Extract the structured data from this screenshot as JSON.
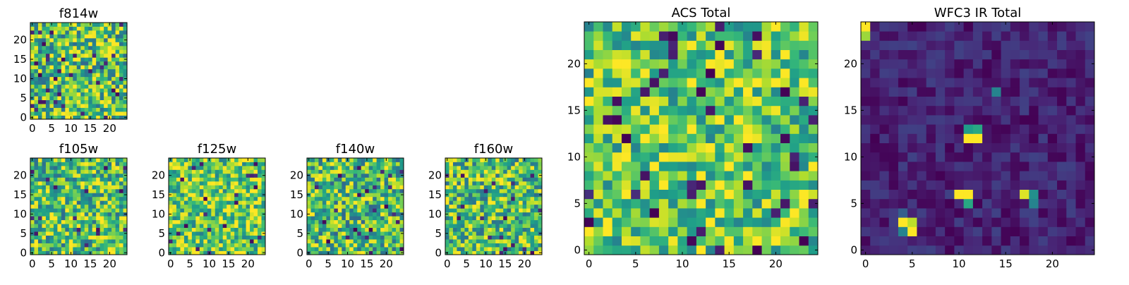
{
  "chart_data": [
    {
      "type": "heatmap",
      "title": "f814w",
      "grid_size": 25,
      "xlim": [
        -0.5,
        24.5
      ],
      "ylim": [
        -0.5,
        24.5
      ],
      "xticks": [
        0,
        5,
        10,
        15,
        20
      ],
      "yticks": [
        0,
        5,
        10,
        15,
        20
      ],
      "colormap": "viridis",
      "background_level": 0.72,
      "variation": 0.38,
      "sources": []
    },
    {
      "type": "heatmap",
      "title": "f105w",
      "grid_size": 25,
      "xlim": [
        -0.5,
        24.5
      ],
      "ylim": [
        -0.5,
        24.5
      ],
      "xticks": [
        0,
        5,
        10,
        15,
        20
      ],
      "yticks": [
        0,
        5,
        10,
        15,
        20
      ],
      "colormap": "viridis",
      "background_level": 0.7,
      "variation": 0.35,
      "sources": []
    },
    {
      "type": "heatmap",
      "title": "f125w",
      "grid_size": 25,
      "xlim": [
        -0.5,
        24.5
      ],
      "ylim": [
        -0.5,
        24.5
      ],
      "xticks": [
        0,
        5,
        10,
        15,
        20
      ],
      "yticks": [
        0,
        5,
        10,
        15,
        20
      ],
      "colormap": "viridis",
      "background_level": 0.76,
      "variation": 0.33,
      "sources": []
    },
    {
      "type": "heatmap",
      "title": "f140w",
      "grid_size": 25,
      "xlim": [
        -0.5,
        24.5
      ],
      "ylim": [
        -0.5,
        24.5
      ],
      "xticks": [
        0,
        5,
        10,
        15,
        20
      ],
      "yticks": [
        0,
        5,
        10,
        15,
        20
      ],
      "colormap": "viridis",
      "background_level": 0.68,
      "variation": 0.36,
      "sources": []
    },
    {
      "type": "heatmap",
      "title": "f160w",
      "grid_size": 25,
      "xlim": [
        -0.5,
        24.5
      ],
      "ylim": [
        -0.5,
        24.5
      ],
      "xticks": [
        0,
        5,
        10,
        15,
        20
      ],
      "yticks": [
        0,
        5,
        10,
        15,
        20
      ],
      "colormap": "viridis",
      "background_level": 0.7,
      "variation": 0.35,
      "sources": []
    },
    {
      "type": "heatmap",
      "title": "ACS Total",
      "grid_size": 25,
      "xlim": [
        -0.5,
        24.5
      ],
      "ylim": [
        -0.5,
        24.5
      ],
      "xticks": [
        0,
        5,
        10,
        15,
        20
      ],
      "yticks": [
        0,
        5,
        10,
        15,
        20
      ],
      "colormap": "viridis",
      "background_level": 0.74,
      "variation": 0.3,
      "sources": [
        {
          "x": 13,
          "y": 19,
          "value": 0.0
        },
        {
          "x": 7,
          "y": 18,
          "value": 0.05
        },
        {
          "x": 4,
          "y": 12,
          "value": 0.0
        },
        {
          "x": 6,
          "y": 8,
          "value": 0.05
        },
        {
          "x": 17,
          "y": 7,
          "value": 0.05
        },
        {
          "x": 7,
          "y": 4,
          "value": 0.0
        },
        {
          "x": 18,
          "y": 0,
          "value": 0.0
        },
        {
          "x": 23,
          "y": 1,
          "value": 0.0
        },
        {
          "x": 17,
          "y": 17,
          "value": 1.0
        },
        {
          "x": 20,
          "y": 18,
          "value": 1.0
        },
        {
          "x": 0,
          "y": 18,
          "value": 1.0
        }
      ]
    },
    {
      "type": "heatmap",
      "title": "WFC3 IR Total",
      "grid_size": 25,
      "xlim": [
        -0.5,
        24.5
      ],
      "ylim": [
        -0.5,
        24.5
      ],
      "xticks": [
        0,
        5,
        10,
        15,
        20
      ],
      "yticks": [
        0,
        5,
        10,
        15,
        20
      ],
      "colormap": "viridis",
      "background_level": 0.1,
      "variation": 0.1,
      "sources": [
        {
          "x": 0,
          "y": 24,
          "value": 1.0
        },
        {
          "x": 0,
          "y": 23,
          "value": 0.85
        },
        {
          "x": 11,
          "y": 12,
          "value": 1.0
        },
        {
          "x": 12,
          "y": 12,
          "value": 1.0
        },
        {
          "x": 11,
          "y": 13,
          "value": 0.55
        },
        {
          "x": 12,
          "y": 13,
          "value": 0.6
        },
        {
          "x": 10,
          "y": 6,
          "value": 1.0
        },
        {
          "x": 11,
          "y": 6,
          "value": 1.0
        },
        {
          "x": 11,
          "y": 5,
          "value": 0.6
        },
        {
          "x": 17,
          "y": 6,
          "value": 0.95
        },
        {
          "x": 18,
          "y": 6,
          "value": 0.5
        },
        {
          "x": 18,
          "y": 5,
          "value": 0.45
        },
        {
          "x": 4,
          "y": 3,
          "value": 1.0
        },
        {
          "x": 5,
          "y": 3,
          "value": 0.9
        },
        {
          "x": 5,
          "y": 2,
          "value": 1.0
        },
        {
          "x": 4,
          "y": 2,
          "value": 0.45
        },
        {
          "x": 4,
          "y": 4,
          "value": 0.3
        },
        {
          "x": 14,
          "y": 17,
          "value": 0.45
        }
      ]
    }
  ]
}
